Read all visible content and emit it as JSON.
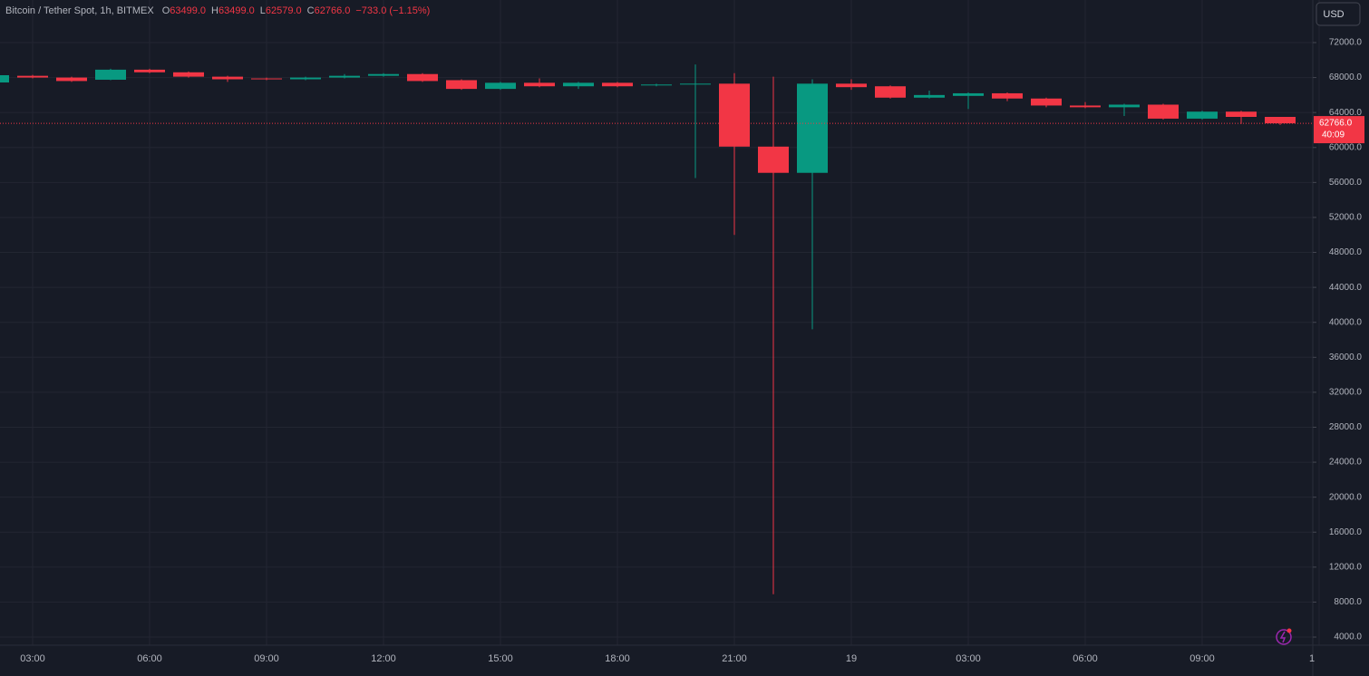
{
  "chart_data": {
    "type": "candlestick",
    "title": "Bitcoin / Tether Spot, 1h, BITMEX",
    "ohlc_legend": [
      {
        "key": "O",
        "value": "63499.0"
      },
      {
        "key": "H",
        "value": "63499.0"
      },
      {
        "key": "L",
        "value": "62579.0"
      },
      {
        "key": "C",
        "value": "62766.0"
      }
    ],
    "change": "−733.0 (−1.15%)",
    "currency": "USD",
    "last_price": {
      "value": 62766,
      "label": "62766.0"
    },
    "countdown": "40:09",
    "up_color": "#089981",
    "down_color": "#f23645",
    "grid": true,
    "categories": [
      null,
      "03:00",
      null,
      null,
      "06:00",
      null,
      null,
      "09:00",
      null,
      null,
      "12:00",
      null,
      null,
      "15:00",
      null,
      null,
      "18:00",
      null,
      null,
      "21:00",
      null,
      null,
      "19",
      null,
      null,
      "03:00",
      null,
      null,
      "06:00",
      null,
      null,
      "09:00",
      null,
      null,
      "1"
    ],
    "open": [
      67439,
      68200,
      68000,
      67750,
      68900,
      68600,
      68100,
      67900,
      67800,
      68000,
      68200,
      68400,
      67700,
      66700,
      67400,
      67000,
      67400,
      67100,
      67200,
      67300,
      60100,
      57100,
      67300,
      67000,
      65700,
      65900,
      66200,
      65600,
      64800,
      64600,
      64900,
      63300,
      64100,
      63499,
      null
    ],
    "high": [
      68300,
      68300,
      68100,
      69000,
      69000,
      68700,
      68200,
      68000,
      68100,
      68400,
      68500,
      68500,
      67800,
      67500,
      67900,
      67500,
      67500,
      67300,
      69500,
      68500,
      68100,
      67800,
      67800,
      67100,
      66500,
      66300,
      66300,
      65700,
      65200,
      65000,
      65000,
      64200,
      64200,
      63499,
      null
    ],
    "low": [
      67400,
      67900,
      67500,
      67700,
      68500,
      68000,
      67500,
      67700,
      67700,
      67900,
      68100,
      67500,
      66600,
      66600,
      66900,
      66700,
      66900,
      67000,
      56500,
      50000,
      8900,
      39200,
      66600,
      65600,
      65600,
      64400,
      65300,
      64600,
      64500,
      63600,
      63200,
      63200,
      62700,
      62579,
      null
    ],
    "close": [
      68268,
      68000,
      67600,
      68900,
      68600,
      68100,
      67800,
      67800,
      68000,
      68200,
      68400,
      67600,
      66700,
      67400,
      67000,
      67400,
      67000,
      67200,
      67300,
      60100,
      57100,
      67300,
      66900,
      65700,
      66000,
      66200,
      65600,
      64800,
      64600,
      64900,
      63300,
      64100,
      63500,
      62766,
      null
    ],
    "ylim": [
      3070,
      76870
    ],
    "yticks": [
      {
        "value": 4000,
        "label": "4000.0"
      },
      {
        "value": 8000,
        "label": "8000.0"
      },
      {
        "value": 12000,
        "label": "12000.0"
      },
      {
        "value": 16000,
        "label": "16000.0"
      },
      {
        "value": 20000,
        "label": "20000.0"
      },
      {
        "value": 24000,
        "label": "24000.0"
      },
      {
        "value": 28000,
        "label": "28000.0"
      },
      {
        "value": 32000,
        "label": "32000.0"
      },
      {
        "value": 36000,
        "label": "36000.0"
      },
      {
        "value": 40000,
        "label": "40000.0"
      },
      {
        "value": 44000,
        "label": "44000.0"
      },
      {
        "value": 48000,
        "label": "48000.0"
      },
      {
        "value": 52000,
        "label": "52000.0"
      },
      {
        "value": 56000,
        "label": "56000.0"
      },
      {
        "value": 60000,
        "label": "60000.0"
      },
      {
        "value": 64000,
        "label": "64000.0"
      },
      {
        "value": 68000,
        "label": "68000.0"
      },
      {
        "value": 72000,
        "label": "72000.0"
      }
    ]
  }
}
